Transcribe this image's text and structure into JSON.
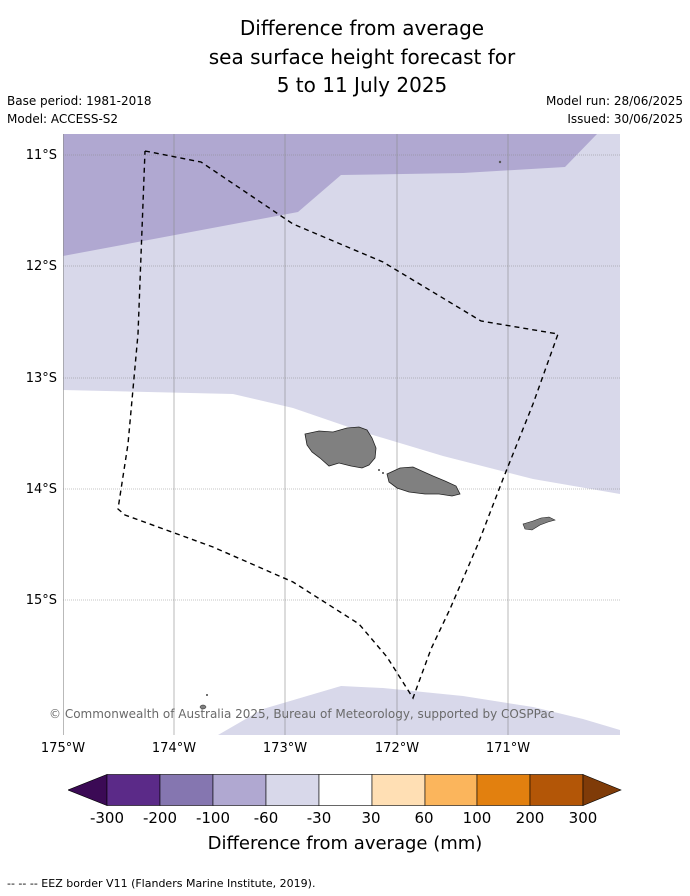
{
  "title": {
    "line1": "Difference from average",
    "line2": "sea surface height forecast for",
    "line3": "5 to 11 July 2025"
  },
  "meta": {
    "base_period": "Base period: 1981-2018",
    "model": "Model: ACCESS-S2",
    "model_run": "Model run: 28/06/2025",
    "issued": "Issued: 30/06/2025"
  },
  "map": {
    "lat_labels": [
      "11°S",
      "12°S",
      "13°S",
      "14°S",
      "15°S"
    ],
    "lon_labels": [
      "175°W",
      "174°W",
      "173°W",
      "172°W",
      "171°W"
    ],
    "credit": "© Commonwealth of Australia 2025, Bureau of Meteorology, supported by COSPPac",
    "colors": {
      "band_-100_-60": "#b0a8d1",
      "band_-60_-30": "#d8d8ea",
      "neutral": "#ffffff",
      "land": "#808080"
    }
  },
  "colorbar": {
    "title": "Difference from average (mm)",
    "labels": [
      "-300",
      "-200",
      "-100",
      "-60",
      "-30",
      "30",
      "60",
      "100",
      "200",
      "300"
    ],
    "colors": [
      "#3b0a55",
      "#5b2a88",
      "#8576b0",
      "#b0a8d1",
      "#d8d8ea",
      "#ffffff",
      "#ffdfb4",
      "#fbb55c",
      "#e2800f",
      "#b35607",
      "#7f3b08"
    ]
  },
  "footer": {
    "legend": "--  --  -- EEZ border V11 (Flanders Marine Institute, 2019)."
  }
}
